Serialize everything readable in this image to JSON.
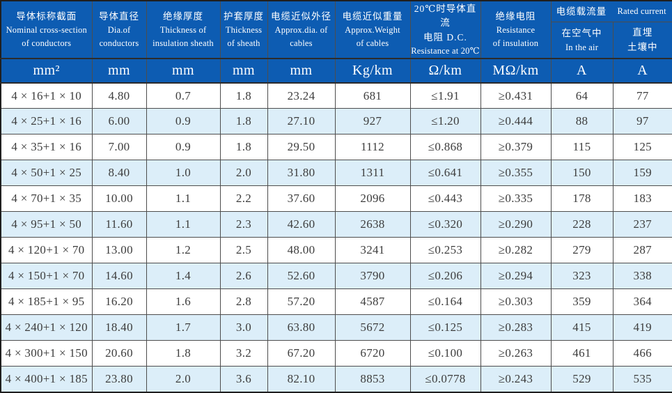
{
  "colors": {
    "header_blue": "#0d5cb2",
    "stripe_blue": "#dceef9",
    "grid_border": "#4d4d4d",
    "outer_border": "#1f1f1f",
    "data_text": "#3d3d3d"
  },
  "table": {
    "header": {
      "cross_section": {
        "zh": "导体标称截面",
        "en1": "Nominal cross-section",
        "en2": "of conductors"
      },
      "dia": {
        "zh": "导体直径",
        "en1": "Dia.of",
        "en2": "conductors"
      },
      "insulation": {
        "zh": "绝缘厚度",
        "en1": "Thickness of",
        "en2": "insulation sheath"
      },
      "sheath": {
        "zh": "护套厚度",
        "en1": "Thickness",
        "en2": "of sheath"
      },
      "approx_dia": {
        "zh": "电缆近似外径",
        "en1": "Approx.dia. of",
        "en2": "cables"
      },
      "weight": {
        "zh": "电缆近似重量",
        "en1": "Approx.Weight",
        "en2": "of cables"
      },
      "dc_resistance": {
        "zh1": "20℃时导体直流",
        "zh2": "电阻 D.C.",
        "en": "Resistance at 20℃"
      },
      "insulation_resistance": {
        "zh": "绝缘电阻",
        "en1": "Resistance",
        "en2": "of insulation"
      },
      "current_group": {
        "zh": "电缆载流量",
        "en": "Rated current"
      },
      "in_air": {
        "zh": "在空气中",
        "en": "In the air"
      },
      "buried": {
        "zh1": "直埋",
        "zh2": "土壤中"
      }
    },
    "units": [
      "mm²",
      "mm",
      "mm",
      "mm",
      "mm",
      "Kg/km",
      "Ω/km",
      "MΩ/km",
      "A",
      "A"
    ],
    "rows": [
      [
        "4 × 16+1 × 10",
        "4.80",
        "0.7",
        "1.8",
        "23.24",
        "681",
        "≤1.91",
        "≥0.431",
        "64",
        "77"
      ],
      [
        "4 × 25+1 × 16",
        "6.00",
        "0.9",
        "1.8",
        "27.10",
        "927",
        "≤1.20",
        "≥0.444",
        "88",
        "97"
      ],
      [
        "4 × 35+1 × 16",
        "7.00",
        "0.9",
        "1.8",
        "29.50",
        "1112",
        "≤0.868",
        "≥0.379",
        "115",
        "125"
      ],
      [
        "4 × 50+1 × 25",
        "8.40",
        "1.0",
        "2.0",
        "31.80",
        "1311",
        "≤0.641",
        "≥0.355",
        "150",
        "159"
      ],
      [
        "4 × 70+1 × 35",
        "10.00",
        "1.1",
        "2.2",
        "37.60",
        "2096",
        "≤0.443",
        "≥0.335",
        "178",
        "183"
      ],
      [
        "4 × 95+1 × 50",
        "11.60",
        "1.1",
        "2.3",
        "42.60",
        "2638",
        "≤0.320",
        "≥0.290",
        "228",
        "237"
      ],
      [
        "4 × 120+1 × 70",
        "13.00",
        "1.2",
        "2.5",
        "48.00",
        "3241",
        "≤0.253",
        "≥0.282",
        "279",
        "287"
      ],
      [
        "4 × 150+1 × 70",
        "14.60",
        "1.4",
        "2.6",
        "52.60",
        "3790",
        "≤0.206",
        "≥0.294",
        "323",
        "338"
      ],
      [
        "4 × 185+1 × 95",
        "16.20",
        "1.6",
        "2.8",
        "57.20",
        "4587",
        "≤0.164",
        "≥0.303",
        "359",
        "364"
      ],
      [
        "4 × 240+1 × 120",
        "18.40",
        "1.7",
        "3.0",
        "63.80",
        "5672",
        "≤0.125",
        "≥0.283",
        "415",
        "419"
      ],
      [
        "4 × 300+1 × 150",
        "20.60",
        "1.8",
        "3.2",
        "67.20",
        "6720",
        "≤0.100",
        "≥0.263",
        "461",
        "466"
      ],
      [
        "4 × 400+1 × 185",
        "23.80",
        "2.0",
        "3.6",
        "82.10",
        "8853",
        "≤0.0778",
        "≥0.243",
        "529",
        "535"
      ]
    ]
  }
}
